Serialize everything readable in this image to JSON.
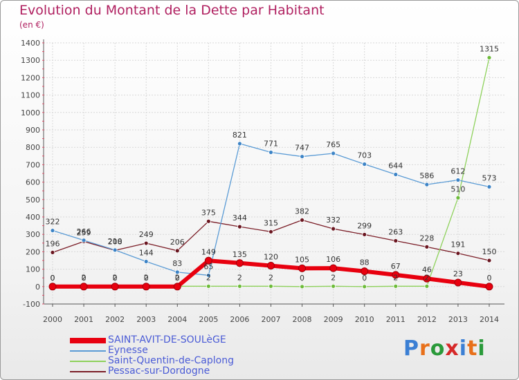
{
  "title": "Evolution du Montant de la Dette par Habitant",
  "subtitle": "(en €)",
  "logo": {
    "text": "Proxiti",
    "colors": [
      "#3b7fd4",
      "#e8701a",
      "#2a9a3a",
      "#d62828",
      "#3b7fd4",
      "#e8701a",
      "#2a9a3a"
    ]
  },
  "chart_data": {
    "type": "line",
    "x": [
      "2000",
      "2001",
      "2002",
      "2003",
      "2004",
      "2005",
      "2006",
      "2007",
      "2008",
      "2009",
      "2010",
      "2011",
      "2012",
      "2013",
      "2014"
    ],
    "ylim": [
      -100,
      1400
    ],
    "yticks": [
      "-100",
      "0",
      "100",
      "200",
      "300",
      "400",
      "500",
      "600",
      "700",
      "800",
      "900",
      "1000",
      "1100",
      "1200",
      "1300",
      "1400"
    ],
    "grid": true,
    "legend_position": "bottom-left",
    "series": [
      {
        "name": "SAINT-AVIT-DE-SOULèGE",
        "color": "#e8000f",
        "values": [
          0,
          0,
          0,
          0,
          0,
          149,
          135,
          120,
          105,
          106,
          88,
          67,
          46,
          23,
          0
        ],
        "labels": [
          "0",
          "0",
          "0",
          "0",
          "0",
          "149",
          "135",
          "120",
          "105",
          "106",
          "88",
          "67",
          "46",
          "23",
          "0"
        ]
      },
      {
        "name": "Eynesse",
        "color": "#5a9bd5",
        "values": [
          322,
          266,
          210,
          144,
          83,
          65,
          821,
          771,
          747,
          765,
          703,
          644,
          586,
          612,
          573
        ],
        "labels": [
          "322",
          "266",
          "210",
          "144",
          "83",
          "65",
          "821",
          "771",
          "747",
          "765",
          "703",
          "644",
          "586",
          "612",
          "573"
        ]
      },
      {
        "name": "Saint-Quentin-de-Caplong",
        "color": "#8dd15a",
        "values": [
          0,
          2,
          2,
          2,
          2,
          2,
          2,
          2,
          0,
          2,
          0,
          2,
          2,
          510,
          1315
        ],
        "labels": [
          "0",
          "2",
          "2",
          "2",
          "2",
          "2",
          "2",
          "2",
          "0",
          "2",
          "0",
          "2",
          "2",
          "510",
          "1315"
        ]
      },
      {
        "name": "Pessac-sur-Dordogne",
        "color": "#7a1c26",
        "values": [
          196,
          259,
          208,
          249,
          206,
          375,
          344,
          315,
          382,
          332,
          299,
          263,
          228,
          191,
          150
        ],
        "labels": [
          "196",
          "259",
          "208",
          "249",
          "206",
          "375",
          "344",
          "315",
          "382",
          "332",
          "299",
          "263",
          "228",
          "191",
          "150"
        ]
      }
    ]
  }
}
